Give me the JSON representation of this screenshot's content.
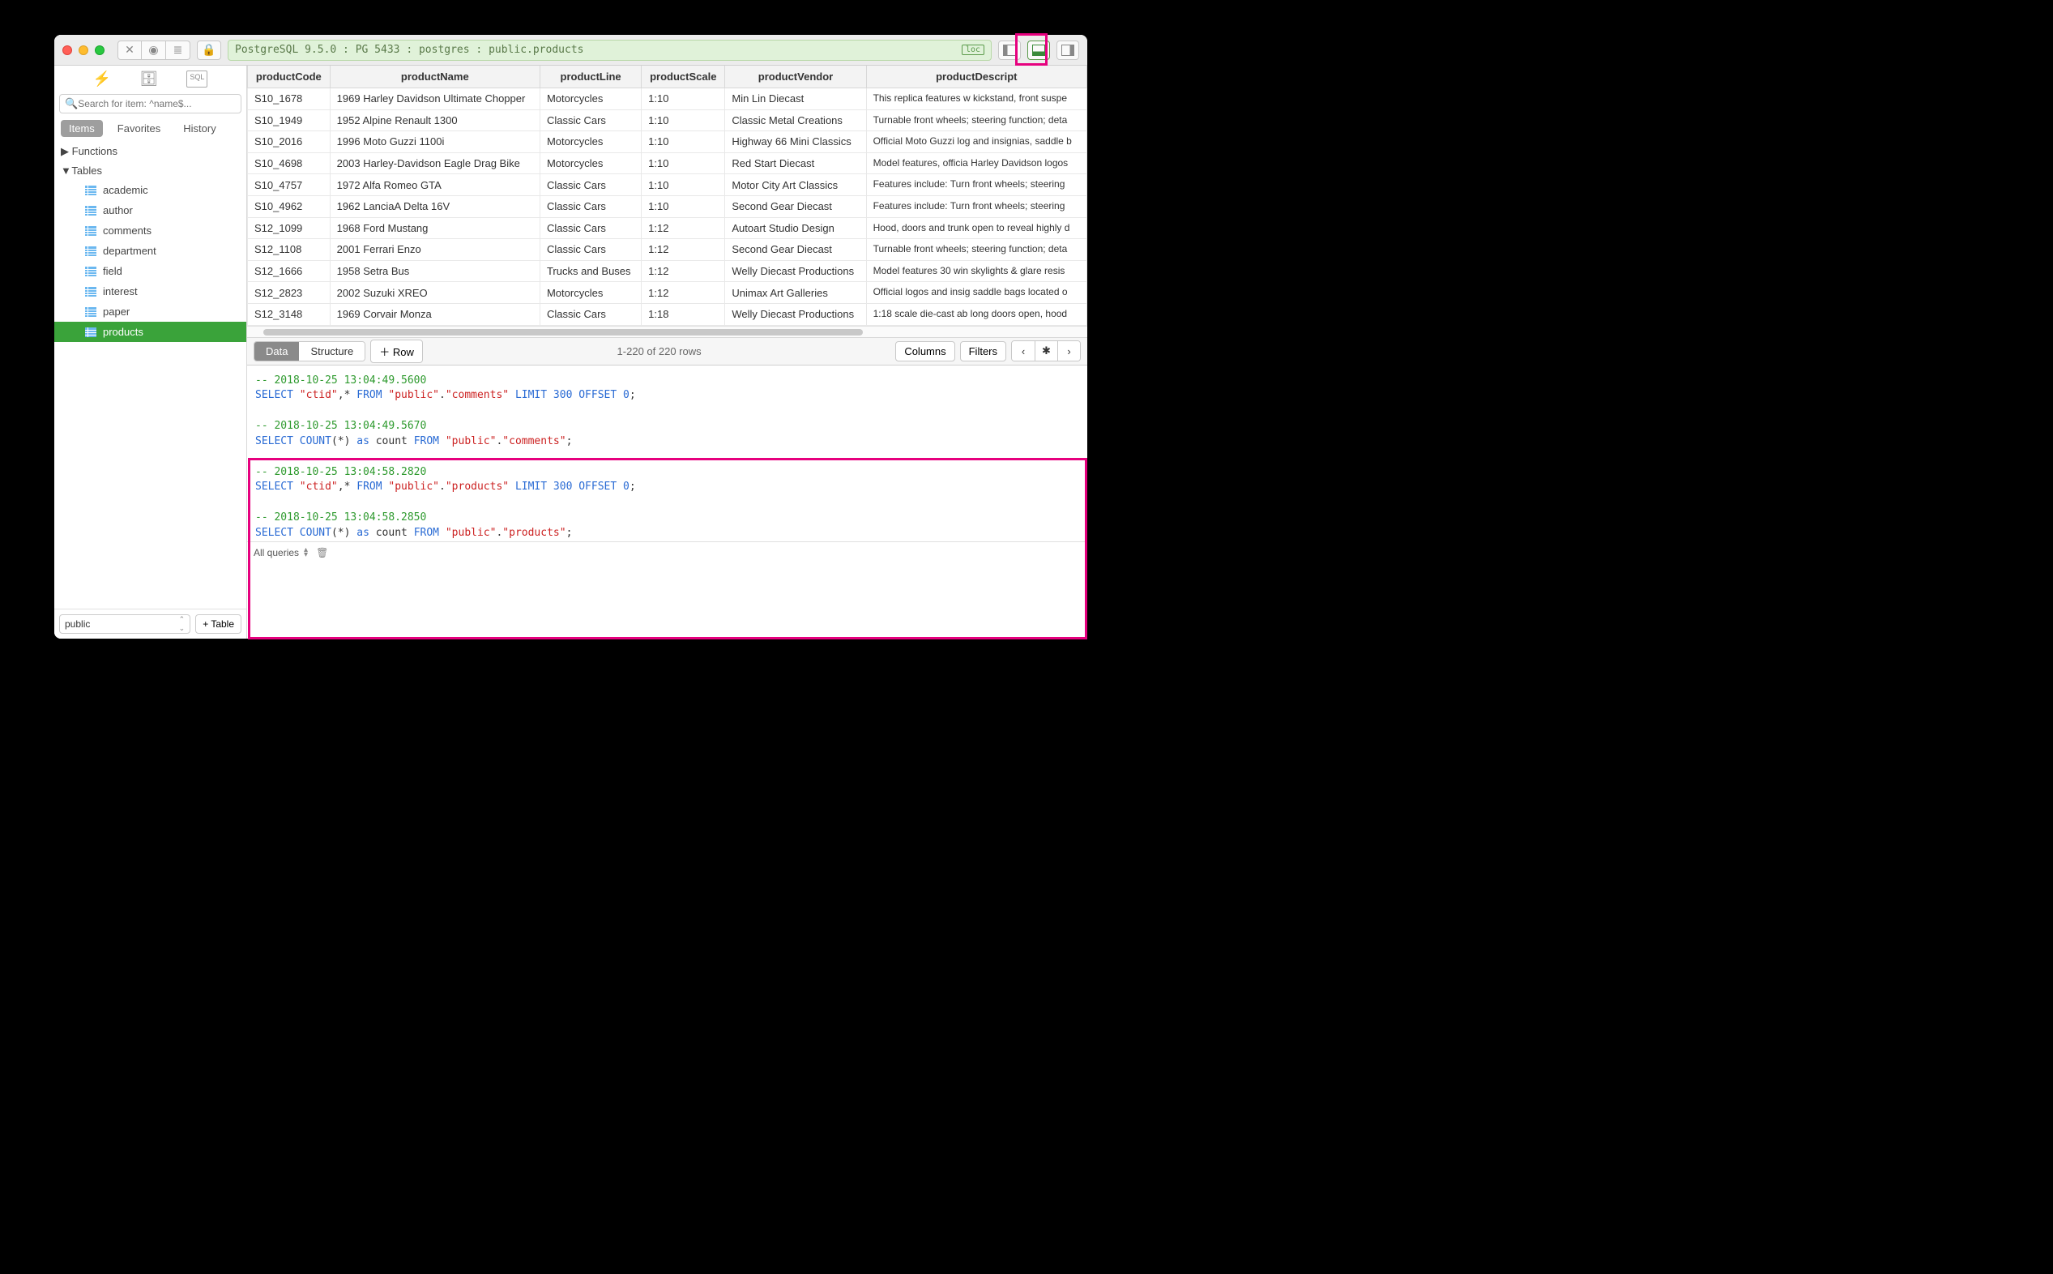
{
  "titlebar": {
    "path": "PostgreSQL 9.5.0 : PG 5433 : postgres : public.products",
    "loc_badge": "loc"
  },
  "sidebar": {
    "search_placeholder": "Search for item: ^name$...",
    "tabs": {
      "items": "Items",
      "favorites": "Favorites",
      "history": "History"
    },
    "functions_label": "Functions",
    "tables_label": "Tables",
    "tables": [
      "academic",
      "author",
      "comments",
      "department",
      "field",
      "interest",
      "paper",
      "products"
    ],
    "active_table_index": 7,
    "schema_select": "public",
    "add_table_btn": "+ Table"
  },
  "grid": {
    "columns": [
      "productCode",
      "productName",
      "productLine",
      "productScale",
      "productVendor",
      "productDescript"
    ],
    "rows": [
      [
        "S10_1678",
        "1969 Harley Davidson Ultimate Chopper",
        "Motorcycles",
        "1:10",
        "Min Lin Diecast",
        "This replica features w kickstand, front suspe"
      ],
      [
        "S10_1949",
        "1952 Alpine Renault 1300",
        "Classic Cars",
        "1:10",
        "Classic Metal Creations",
        "Turnable front wheels; steering function; deta"
      ],
      [
        "S10_2016",
        "1996 Moto Guzzi 1100i",
        "Motorcycles",
        "1:10",
        "Highway 66 Mini Classics",
        "Official Moto Guzzi log and insignias, saddle b"
      ],
      [
        "S10_4698",
        "2003 Harley-Davidson Eagle Drag Bike",
        "Motorcycles",
        "1:10",
        "Red Start Diecast",
        "Model features, officia Harley Davidson logos"
      ],
      [
        "S10_4757",
        "1972 Alfa Romeo GTA",
        "Classic Cars",
        "1:10",
        "Motor City Art Classics",
        "Features include: Turn front wheels; steering"
      ],
      [
        "S10_4962",
        "1962 LanciaA Delta 16V",
        "Classic Cars",
        "1:10",
        "Second Gear Diecast",
        "Features include: Turn front wheels; steering"
      ],
      [
        "S12_1099",
        "1968 Ford Mustang",
        "Classic Cars",
        "1:12",
        "Autoart Studio Design",
        "Hood, doors and trunk open to reveal highly d"
      ],
      [
        "S12_1108",
        "2001 Ferrari Enzo",
        "Classic Cars",
        "1:12",
        "Second Gear Diecast",
        "Turnable front wheels; steering function; deta"
      ],
      [
        "S12_1666",
        "1958 Setra Bus",
        "Trucks and Buses",
        "1:12",
        "Welly Diecast Productions",
        "Model features 30 win skylights & glare resis"
      ],
      [
        "S12_2823",
        "2002 Suzuki XREO",
        "Motorcycles",
        "1:12",
        "Unimax Art Galleries",
        "Official logos and insig saddle bags located o"
      ],
      [
        "S12_3148",
        "1969 Corvair Monza",
        "Classic Cars",
        "1:18",
        "Welly Diecast Productions",
        "1:18 scale die-cast ab long doors open, hood"
      ]
    ]
  },
  "status": {
    "data": "Data",
    "structure": "Structure",
    "row": "Row",
    "range": "1-220 of 220 rows",
    "columns": "Columns",
    "filters": "Filters"
  },
  "console": {
    "queries": [
      {
        "ts": "-- 2018-10-25 13:04:49.5600",
        "sql": "SELECT \"ctid\",* FROM \"public\".\"comments\" LIMIT 300 OFFSET 0;"
      },
      {
        "ts": "-- 2018-10-25 13:04:49.5670",
        "sql": "SELECT COUNT(*) as count FROM \"public\".\"comments\";"
      },
      {
        "ts": "-- 2018-10-25 13:04:58.2820",
        "sql": "SELECT \"ctid\",* FROM \"public\".\"products\" LIMIT 300 OFFSET 0;"
      },
      {
        "ts": "-- 2018-10-25 13:04:58.2850",
        "sql": "SELECT COUNT(*) as count FROM \"public\".\"products\";"
      }
    ],
    "footer_label": "All queries"
  }
}
